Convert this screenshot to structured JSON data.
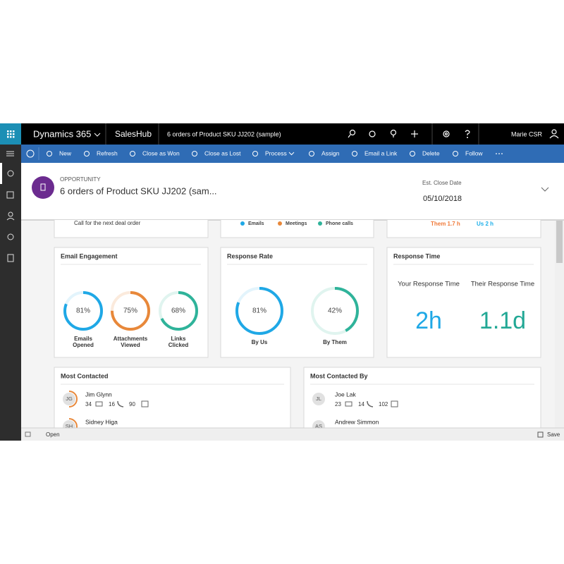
{
  "app": {
    "name": "Dynamics 365",
    "module": "SalesHub",
    "record": "6 orders of Product SKU JJ202 (sample)",
    "user": "Marie CSR"
  },
  "commands": [
    "New",
    "Refresh",
    "Close as Won",
    "Close as Lost",
    "Process",
    "Assign",
    "Email a Link",
    "Delete",
    "Follow"
  ],
  "header": {
    "entity": "OPPORTUNITY",
    "title": "6 orders of Product SKU JJ202 (sam...",
    "close_date_label": "Est. Close Date",
    "close_date": "05/10/2018"
  },
  "partial": {
    "note": "Call for the next deal order",
    "legend": [
      "Emails",
      "Meetings",
      "Phone calls"
    ],
    "them": "Them 1.7 h",
    "us": "Us 2 h"
  },
  "email_engagement": {
    "title": "Email Engagement",
    "items": [
      {
        "value": 81,
        "value_label": "81%",
        "label": [
          "Emails",
          "Opened"
        ]
      },
      {
        "value": 75,
        "value_label": "75%",
        "label": [
          "Attachments",
          "Viewed"
        ]
      },
      {
        "value": 68,
        "value_label": "68%",
        "label": [
          "Links",
          "Clicked"
        ]
      }
    ]
  },
  "response_rate": {
    "title": "Response Rate",
    "items": [
      {
        "value": 81,
        "value_label": "81%",
        "label": "By Us"
      },
      {
        "value": 42,
        "value_label": "42%",
        "label": "By Them"
      }
    ]
  },
  "response_time": {
    "title": "Response Time",
    "items": [
      {
        "label": "Your Response Time",
        "value": "2h"
      },
      {
        "label": "Their Response Time",
        "value": "1.1d"
      }
    ]
  },
  "most_contacted": {
    "title": "Most Contacted",
    "contacts": [
      {
        "initials": "JG",
        "name": "Jim Glynn",
        "emails": 34,
        "calls": 16,
        "meetings": 90
      },
      {
        "initials": "SH",
        "name": "Sidney Higa"
      }
    ]
  },
  "most_contacted_by": {
    "title": "Most Contacted By",
    "contacts": [
      {
        "initials": "JL",
        "name": "Joe Lak",
        "emails": 23,
        "calls": 14,
        "meetings": 102
      },
      {
        "initials": "AS",
        "name": "Andrew Simmon"
      }
    ]
  },
  "status": {
    "state": "Open",
    "save": "Save"
  }
}
